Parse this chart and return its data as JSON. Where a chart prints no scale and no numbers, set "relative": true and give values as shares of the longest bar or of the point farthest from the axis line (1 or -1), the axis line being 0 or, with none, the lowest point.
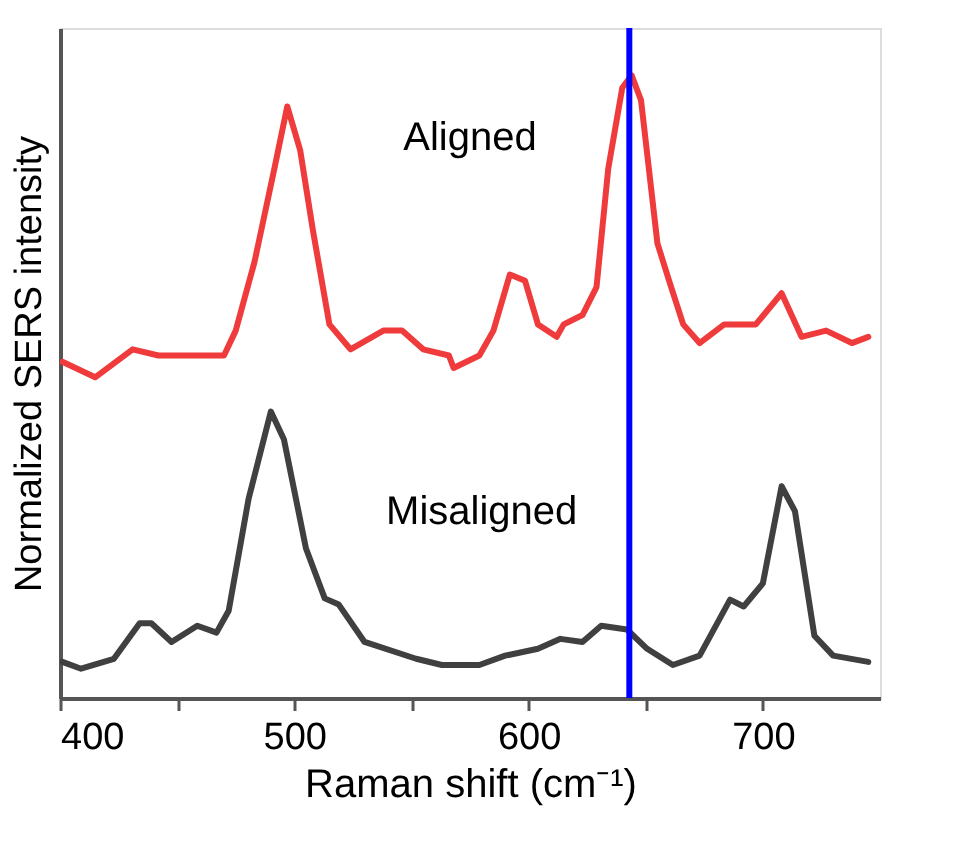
{
  "chart_data": {
    "type": "line",
    "relative": true,
    "xlabel": "Raman shift (cm⁻¹)",
    "ylabel": "Normalized SERS intensity",
    "xlim": [
      400,
      750
    ],
    "xticks": [
      400,
      {
        "value": 450,
        "label": null
      },
      500,
      {
        "value": 550,
        "label": null
      },
      600,
      {
        "value": 650,
        "label": null
      },
      700
    ],
    "grid": false,
    "marker": "none",
    "line_style": "solid",
    "series": [
      {
        "name": "Aligned",
        "color": "#ef3b3b",
        "x": [
          401,
          415,
          431,
          442,
          456,
          470,
          475,
          483,
          491.5,
          497,
          502.5,
          508,
          515,
          524,
          538,
          546,
          555,
          566,
          568,
          579,
          585,
          592,
          598.5,
          604,
          612,
          615,
          623,
          629,
          634,
          640,
          644,
          648,
          655,
          660,
          666,
          673,
          683.5,
          697,
          708,
          716.5,
          727,
          738,
          745
        ],
        "values": [
          0.54,
          0.515,
          0.56,
          0.55,
          0.55,
          0.55,
          0.59,
          0.7,
          0.85,
          0.95,
          0.88,
          0.75,
          0.6,
          0.56,
          0.59,
          0.59,
          0.56,
          0.55,
          0.53,
          0.55,
          0.59,
          0.68,
          0.67,
          0.6,
          0.58,
          0.6,
          0.615,
          0.66,
          0.85,
          0.98,
          1.0,
          0.96,
          0.73,
          0.67,
          0.6,
          0.57,
          0.6,
          0.6,
          0.65,
          0.58,
          0.59,
          0.57,
          0.58
        ]
      },
      {
        "name": "Misaligned",
        "color": "#404040",
        "x": [
          401,
          409,
          423,
          434,
          439,
          447.6,
          458.6,
          466.8,
          472,
          480.5,
          490,
          495.6,
          505,
          513,
          519,
          530,
          552,
          563,
          579,
          590,
          604,
          613.6,
          623,
          631,
          642,
          650.6,
          661.6,
          673,
          686,
          691.8,
          700,
          708,
          713.7,
          722,
          730,
          745
        ],
        "values": [
          0.058,
          0.047,
          0.063,
          0.12,
          0.12,
          0.09,
          0.116,
          0.105,
          0.14,
          0.32,
          0.46,
          0.415,
          0.24,
          0.16,
          0.15,
          0.09,
          0.063,
          0.053,
          0.053,
          0.068,
          0.079,
          0.095,
          0.09,
          0.116,
          0.11,
          0.079,
          0.053,
          0.068,
          0.158,
          0.147,
          0.184,
          0.34,
          0.3,
          0.1,
          0.068,
          0.058
        ]
      }
    ],
    "ref_lines": [
      {
        "axis": "x",
        "value": 643,
        "color": "#0000ff",
        "line_style": "solid"
      }
    ]
  }
}
